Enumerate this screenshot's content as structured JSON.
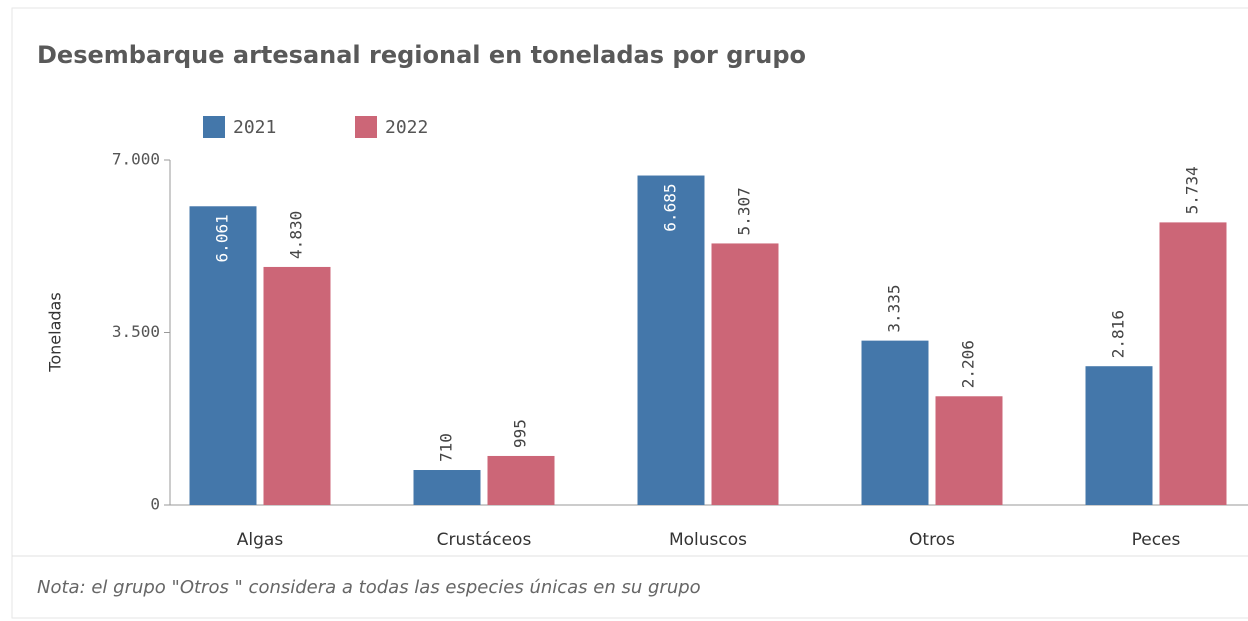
{
  "chart_data": {
    "type": "bar",
    "title": "Desembarque artesanal regional en toneladas por grupo",
    "y_label": "Toneladas",
    "note": "Nota: el grupo \"Otros \" considera a todas las especies únicas en su grupo",
    "categories": [
      "Algas",
      "Crustáceos",
      "Moluscos",
      "Otros",
      "Peces"
    ],
    "series": [
      {
        "name": "2021",
        "color": "#4477aa",
        "values": [
          6061,
          710,
          6685,
          3335,
          2816
        ],
        "value_labels": [
          "6.061",
          "710",
          "6.685",
          "3.335",
          "2.816"
        ]
      },
      {
        "name": "2022",
        "color": "#cc6677",
        "values": [
          4830,
          995,
          5307,
          2206,
          5734
        ],
        "value_labels": [
          "4.830",
          "995",
          "5.307",
          "2.206",
          "5.734"
        ]
      }
    ],
    "ylim": [
      0,
      7000
    ],
    "yticks": [
      0,
      {
        "value": 3500,
        "label": "3.500"
      },
      {
        "value": 7000,
        "label": "7.000"
      }
    ],
    "grid": false,
    "legend": "top"
  }
}
